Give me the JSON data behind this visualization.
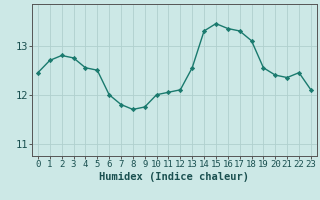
{
  "x": [
    0,
    1,
    2,
    3,
    4,
    5,
    6,
    7,
    8,
    9,
    10,
    11,
    12,
    13,
    14,
    15,
    16,
    17,
    18,
    19,
    20,
    21,
    22,
    23
  ],
  "y": [
    12.45,
    12.7,
    12.8,
    12.75,
    12.55,
    12.5,
    12.0,
    11.8,
    11.7,
    11.75,
    12.0,
    12.05,
    12.1,
    12.55,
    13.3,
    13.45,
    13.35,
    13.3,
    13.1,
    12.55,
    12.4,
    12.35,
    12.45,
    12.1
  ],
  "xlabel": "Humidex (Indice chaleur)",
  "xlim_left": -0.5,
  "xlim_right": 23.5,
  "ylim": [
    10.75,
    13.85
  ],
  "yticks": [
    11,
    12,
    13
  ],
  "xticks": [
    0,
    1,
    2,
    3,
    4,
    5,
    6,
    7,
    8,
    9,
    10,
    11,
    12,
    13,
    14,
    15,
    16,
    17,
    18,
    19,
    20,
    21,
    22,
    23
  ],
  "line_color": "#1a7a6e",
  "marker_color": "#1a7a6e",
  "bg_color": "#cce8e6",
  "grid_color": "#b0d0ce",
  "axis_color": "#555555",
  "tick_color": "#1a5050",
  "xlabel_color": "#1a5050",
  "xlabel_fontsize": 7.5,
  "tick_fontsize": 6.5,
  "ytick_fontsize": 7.5
}
